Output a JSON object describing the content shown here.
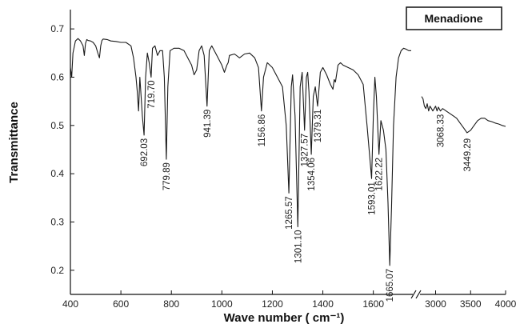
{
  "chart_data": {
    "type": "line",
    "title": "",
    "legend": "Menadione",
    "legend_position": "top-right",
    "xlabel": "Wave number ( cm⁻¹)",
    "ylabel": "Transmittance",
    "grid": false,
    "x_axis_break": {
      "from": 1750,
      "to": 2800
    },
    "xlim_left": [
      400,
      1750
    ],
    "xlim_right": [
      2800,
      4000
    ],
    "ylim": [
      0.15,
      0.74
    ],
    "x_ticks_left": [
      "400",
      "600",
      "800",
      "1000",
      "1200",
      "1400",
      "1600"
    ],
    "x_ticks_right": [
      "3000",
      "3500",
      "4000"
    ],
    "y_ticks": [
      "0.2",
      "0.3",
      "0.4",
      "0.5",
      "0.6",
      "0.7"
    ],
    "peak_labels": [
      {
        "x": 692.03,
        "y": 0.48,
        "label": "692.03"
      },
      {
        "x": 719.7,
        "y": 0.6,
        "label": "719.70"
      },
      {
        "x": 779.89,
        "y": 0.43,
        "label": "779.89"
      },
      {
        "x": 941.39,
        "y": 0.54,
        "label": "941.39"
      },
      {
        "x": 1156.86,
        "y": 0.53,
        "label": "1156.86"
      },
      {
        "x": 1265.57,
        "y": 0.36,
        "label": "1265.57"
      },
      {
        "x": 1301.1,
        "y": 0.29,
        "label": "1301.10"
      },
      {
        "x": 1327.57,
        "y": 0.49,
        "label": "1327.57"
      },
      {
        "x": 1354.06,
        "y": 0.44,
        "label": "1354.06"
      },
      {
        "x": 1379.31,
        "y": 0.54,
        "label": "1379.31"
      },
      {
        "x": 1593.01,
        "y": 0.39,
        "label": "1593.01"
      },
      {
        "x": 1622.22,
        "y": 0.44,
        "label": "1622.22"
      },
      {
        "x": 1665.07,
        "y": 0.21,
        "label": "1665.07"
      },
      {
        "x": 3068.33,
        "y": 0.53,
        "label": "3068.33"
      },
      {
        "x": 3449.29,
        "y": 0.48,
        "label": "3449.29"
      }
    ],
    "series": [
      {
        "x": [
          400,
          405,
          410,
          420,
          430,
          440,
          450,
          455,
          460,
          465,
          470,
          480,
          490,
          500,
          510,
          515,
          520,
          525,
          530,
          545,
          560,
          580,
          600,
          620,
          640,
          650,
          660,
          665,
          670,
          675,
          680,
          685,
          692,
          698,
          705,
          712,
          719.7,
          725,
          735,
          745,
          755,
          765,
          772,
          779.89,
          786,
          795,
          810,
          830,
          850,
          870,
          880,
          890,
          900,
          910,
          920,
          930,
          941.39,
          950,
          960,
          980,
          1000,
          1010,
          1020,
          1025,
          1030,
          1050,
          1070,
          1090,
          1110,
          1130,
          1145,
          1156.86,
          1165,
          1180,
          1200,
          1220,
          1240,
          1255,
          1265.57,
          1275,
          1280,
          1290,
          1301.1,
          1310,
          1318,
          1327.57,
          1335,
          1340,
          1345,
          1354.06,
          1362,
          1370,
          1379.31,
          1390,
          1400,
          1415,
          1430,
          1440,
          1445,
          1450,
          1460,
          1470,
          1480,
          1500,
          1520,
          1540,
          1560,
          1575,
          1593.01,
          1600,
          1606,
          1612,
          1622.22,
          1630,
          1640,
          1650,
          1658,
          1665.07,
          1672,
          1680,
          1690,
          1700,
          1710,
          1720,
          1730,
          1740,
          1750
        ],
        "y": [
          0.62,
          0.6,
          0.65,
          0.675,
          0.68,
          0.675,
          0.665,
          0.645,
          0.67,
          0.678,
          0.676,
          0.675,
          0.672,
          0.665,
          0.648,
          0.64,
          0.665,
          0.676,
          0.679,
          0.678,
          0.675,
          0.674,
          0.672,
          0.672,
          0.665,
          0.64,
          0.6,
          0.57,
          0.53,
          0.6,
          0.56,
          0.52,
          0.48,
          0.6,
          0.65,
          0.63,
          0.6,
          0.66,
          0.665,
          0.645,
          0.655,
          0.655,
          0.6,
          0.43,
          0.58,
          0.655,
          0.66,
          0.66,
          0.655,
          0.635,
          0.625,
          0.605,
          0.615,
          0.655,
          0.665,
          0.645,
          0.54,
          0.655,
          0.665,
          0.645,
          0.625,
          0.61,
          0.625,
          0.63,
          0.645,
          0.648,
          0.64,
          0.648,
          0.65,
          0.64,
          0.62,
          0.53,
          0.6,
          0.63,
          0.62,
          0.6,
          0.58,
          0.5,
          0.36,
          0.58,
          0.605,
          0.52,
          0.29,
          0.58,
          0.61,
          0.49,
          0.6,
          0.61,
          0.57,
          0.44,
          0.56,
          0.58,
          0.54,
          0.61,
          0.62,
          0.605,
          0.585,
          0.575,
          0.595,
          0.59,
          0.625,
          0.63,
          0.625,
          0.62,
          0.615,
          0.605,
          0.585,
          0.5,
          0.39,
          0.52,
          0.6,
          0.56,
          0.44,
          0.51,
          0.49,
          0.45,
          0.34,
          0.21,
          0.33,
          0.5,
          0.6,
          0.64,
          0.655,
          0.66,
          0.658,
          0.655,
          0.655
        ]
      },
      {
        "x": [
          2800,
          2820,
          2840,
          2860,
          2880,
          2900,
          2920,
          2940,
          2960,
          2980,
          3000,
          3020,
          3040,
          3068.33,
          3100,
          3150,
          3200,
          3250,
          3300,
          3350,
          3400,
          3449.29,
          3500,
          3550,
          3600,
          3650,
          3700,
          3750,
          3800,
          3850,
          3900,
          3950,
          4000
        ],
        "y": [
          0.56,
          0.555,
          0.54,
          0.535,
          0.545,
          0.53,
          0.54,
          0.535,
          0.53,
          0.535,
          0.54,
          0.53,
          0.538,
          0.53,
          0.535,
          0.53,
          0.525,
          0.52,
          0.515,
          0.505,
          0.495,
          0.485,
          0.49,
          0.5,
          0.51,
          0.515,
          0.515,
          0.51,
          0.508,
          0.505,
          0.503,
          0.5,
          0.498
        ]
      }
    ]
  }
}
